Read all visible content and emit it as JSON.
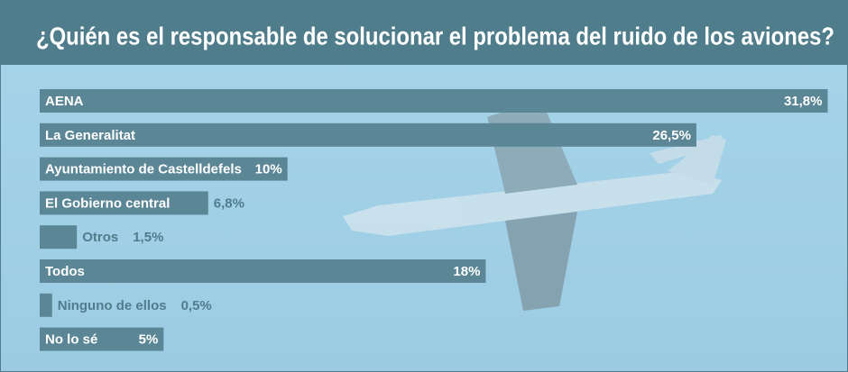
{
  "chart_data": {
    "type": "barh",
    "title": "¿Quién es el responsable de solucionar el problema del ruido de los aviones?",
    "categories": [
      "AENA",
      "La Generalitat",
      "Ayuntamiento de Castelldefels",
      "El Gobierno central",
      "Otros",
      "Todos",
      "Ninguno de ellos",
      "No lo sé"
    ],
    "values": [
      31.8,
      26.5,
      10,
      6.8,
      1.5,
      18,
      0.5,
      5
    ],
    "value_labels": [
      "31,8%",
      "26,5%",
      "10%",
      "6,8%",
      "1,5%",
      "18%",
      "0,5%",
      "5%"
    ],
    "color": "#5b8696",
    "xlim": [
      0,
      32
    ]
  }
}
